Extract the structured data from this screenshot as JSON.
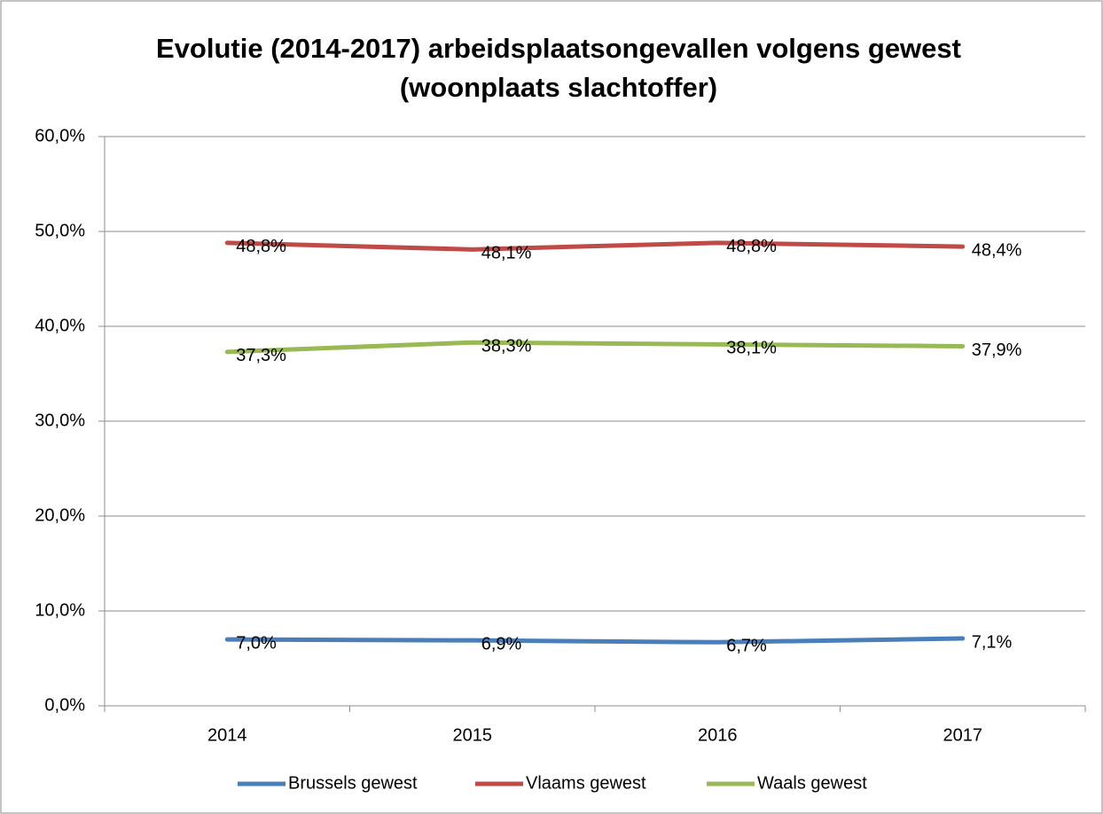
{
  "chart_data": {
    "type": "line",
    "title": [
      "Evolutie (2014-2017) arbeidsplaatsongevallen volgens gewest",
      "(woonplaats slachtoffer)"
    ],
    "categories": [
      "2014",
      "2015",
      "2016",
      "2017"
    ],
    "series": [
      {
        "name": "Brussels gewest",
        "color": "#4a7ebb",
        "values": [
          7.0,
          6.9,
          6.7,
          7.1
        ],
        "value_labels": [
          "7,0%",
          "6,9%",
          "6,7%",
          "7,1%"
        ]
      },
      {
        "name": "Vlaams gewest",
        "color": "#be4b48",
        "values": [
          48.8,
          48.1,
          48.8,
          48.4
        ],
        "value_labels": [
          "48,8%",
          "48,1%",
          "48,8%",
          "48,4%"
        ]
      },
      {
        "name": "Waals gewest",
        "color": "#98b954",
        "values": [
          37.3,
          38.3,
          38.1,
          37.9
        ],
        "value_labels": [
          "37,3%",
          "38,3%",
          "38,1%",
          "37,9%"
        ]
      }
    ],
    "ylim": [
      0,
      60
    ],
    "yticks": [
      {
        "value": 0,
        "label": "0,0%"
      },
      {
        "value": 10,
        "label": "10,0%"
      },
      {
        "value": 20,
        "label": "20,0%"
      },
      {
        "value": 30,
        "label": "30,0%"
      },
      {
        "value": 40,
        "label": "40,0%"
      },
      {
        "value": 50,
        "label": "50,0%"
      },
      {
        "value": 60,
        "label": "60,0%"
      }
    ],
    "grid": true,
    "legend": "bottom"
  }
}
